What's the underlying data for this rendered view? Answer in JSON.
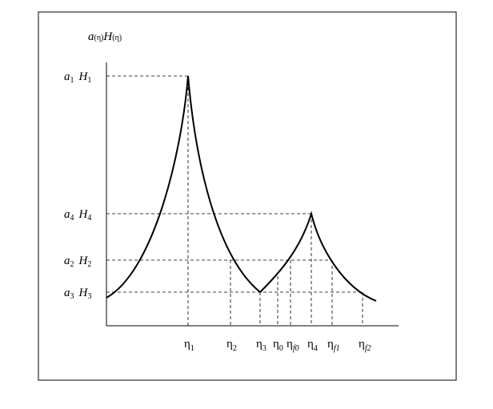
{
  "axis_label": {
    "a": "a",
    "a_arg": "(η)",
    "h": "H",
    "h_arg": "(η)"
  },
  "y_labels": [
    {
      "a": "a",
      "a_sub": "1",
      "h": "H",
      "h_sub": "1"
    },
    {
      "a": "a",
      "a_sub": "4",
      "h": "H",
      "h_sub": "4"
    },
    {
      "a": "a",
      "a_sub": "2",
      "h": "H",
      "h_sub": "2"
    },
    {
      "a": "a",
      "a_sub": "3",
      "h": "H",
      "h_sub": "3"
    }
  ],
  "x_labels": [
    {
      "main": "η",
      "sub": "1"
    },
    {
      "main": "η",
      "sub": "2"
    },
    {
      "main": "η",
      "sub": "3"
    },
    {
      "main": "η",
      "sub": "0"
    },
    {
      "main": "η",
      "sub": "f0"
    },
    {
      "main": "η",
      "sub": "4"
    },
    {
      "main": "η",
      "sub": "f1"
    },
    {
      "main": "η",
      "sub": "f2"
    }
  ]
}
